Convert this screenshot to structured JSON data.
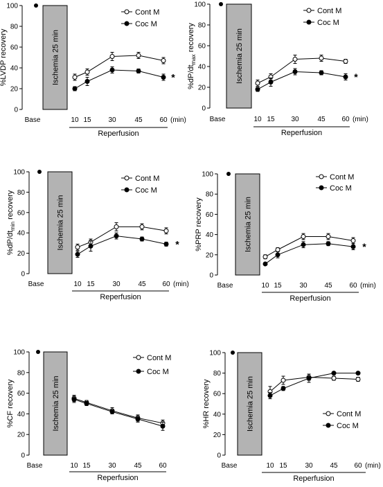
{
  "shared": {
    "ischemia_label": "Ischemia 25 min",
    "reperfusion_label": "Reperfusion",
    "unit_label": "(min)",
    "x_ticks": [
      "Base",
      "10",
      "15",
      "30",
      "45",
      "60"
    ],
    "series_names": [
      "Cont M",
      "Coc M"
    ],
    "colors": {
      "cont": "#ffffff",
      "coc": "#000000",
      "ischemia_box": "#b3b3b3"
    }
  },
  "chart_data": [
    {
      "type": "line",
      "ylabel": "%LVDP recovery",
      "ylim": [
        0,
        100
      ],
      "y_ticks": [
        "0",
        "20",
        "40",
        "60",
        "80",
        "100"
      ],
      "x": [
        10,
        15,
        30,
        45,
        60
      ],
      "base_value": 100,
      "series": [
        {
          "name": "Cont M",
          "values": [
            31,
            36,
            51,
            52,
            47
          ],
          "errors": [
            3,
            3,
            4,
            3,
            3
          ]
        },
        {
          "name": "Coc M",
          "values": [
            20,
            27,
            38,
            37,
            31
          ],
          "errors": [
            2,
            4,
            3,
            2,
            3
          ]
        }
      ],
      "annotation": "*",
      "legend_position": "top-right"
    },
    {
      "type": "line",
      "ylabel": "%dP/dt",
      "ylabel_sub": "max",
      "ylabel_suffix": "recovery",
      "ylim": [
        0,
        100
      ],
      "y_ticks": [
        "0",
        "20",
        "40",
        "60",
        "80",
        "100"
      ],
      "x": [
        10,
        15,
        30,
        45,
        60
      ],
      "base_value": 100,
      "series": [
        {
          "name": "Cont M",
          "values": [
            24,
            30,
            47,
            48,
            45
          ],
          "errors": [
            3,
            3,
            4,
            3,
            2
          ]
        },
        {
          "name": "Coc M",
          "values": [
            18,
            25,
            35,
            34,
            30
          ],
          "errors": [
            2,
            4,
            3,
            2,
            3
          ]
        }
      ],
      "annotation": "*",
      "legend_position": "top-right"
    },
    {
      "type": "line",
      "ylabel": "%dP/dt",
      "ylabel_sub": "min",
      "ylabel_suffix": "recovery",
      "ylim": [
        0,
        100
      ],
      "y_ticks": [
        "0",
        "20",
        "40",
        "60",
        "80",
        "100"
      ],
      "x": [
        10,
        15,
        30,
        45,
        60
      ],
      "base_value": 100,
      "series": [
        {
          "name": "Cont M",
          "values": [
            26,
            31,
            46,
            46,
            42
          ],
          "errors": [
            3,
            3,
            4,
            3,
            3
          ]
        },
        {
          "name": "Coc M",
          "values": [
            19,
            27,
            37,
            34,
            29
          ],
          "errors": [
            3,
            5,
            3,
            2,
            2
          ]
        }
      ],
      "annotation": "*",
      "legend_position": "top-right"
    },
    {
      "type": "line",
      "ylabel": "%PRP recovery",
      "ylim": [
        0,
        100
      ],
      "y_ticks": [
        "0",
        "20",
        "40",
        "60",
        "80",
        "100"
      ],
      "x": [
        10,
        15,
        30,
        45,
        60
      ],
      "base_value": 100,
      "series": [
        {
          "name": "Cont M",
          "values": [
            18,
            25,
            38,
            38,
            34
          ],
          "errors": [
            2,
            2,
            3,
            3,
            3
          ]
        },
        {
          "name": "Coc M",
          "values": [
            11,
            20,
            30,
            31,
            28
          ],
          "errors": [
            1,
            3,
            3,
            2,
            3
          ]
        }
      ],
      "annotation": "*",
      "legend_position": "top-right"
    },
    {
      "type": "line",
      "ylabel": "%CF recovery",
      "ylim": [
        0,
        100
      ],
      "y_ticks": [
        "0",
        "20",
        "40",
        "60",
        "80",
        "100"
      ],
      "x": [
        10,
        15,
        30,
        45,
        60
      ],
      "base_value": 100,
      "series": [
        {
          "name": "Cont M",
          "values": [
            55,
            51,
            43,
            36,
            31
          ],
          "errors": [
            3,
            2,
            3,
            3,
            3
          ]
        },
        {
          "name": "Coc M",
          "values": [
            54,
            50,
            42,
            35,
            28
          ],
          "errors": [
            3,
            2,
            2,
            3,
            4
          ]
        }
      ],
      "annotation": "",
      "legend_position": "top-right"
    },
    {
      "type": "line",
      "ylabel": "%HR recovery",
      "ylim": [
        0,
        100
      ],
      "y_ticks": [
        "0",
        "20",
        "40",
        "60",
        "80",
        "100"
      ],
      "x": [
        10,
        15,
        30,
        45,
        60
      ],
      "base_value": 100,
      "series": [
        {
          "name": "Cont M",
          "values": [
            62,
            73,
            76,
            75,
            74
          ],
          "errors": [
            5,
            4,
            3,
            2,
            2
          ]
        },
        {
          "name": "Coc M",
          "values": [
            58,
            65,
            75,
            80,
            80
          ],
          "errors": [
            3,
            2,
            4,
            1,
            1
          ]
        }
      ],
      "annotation": "",
      "legend_position": "middle-right"
    }
  ]
}
